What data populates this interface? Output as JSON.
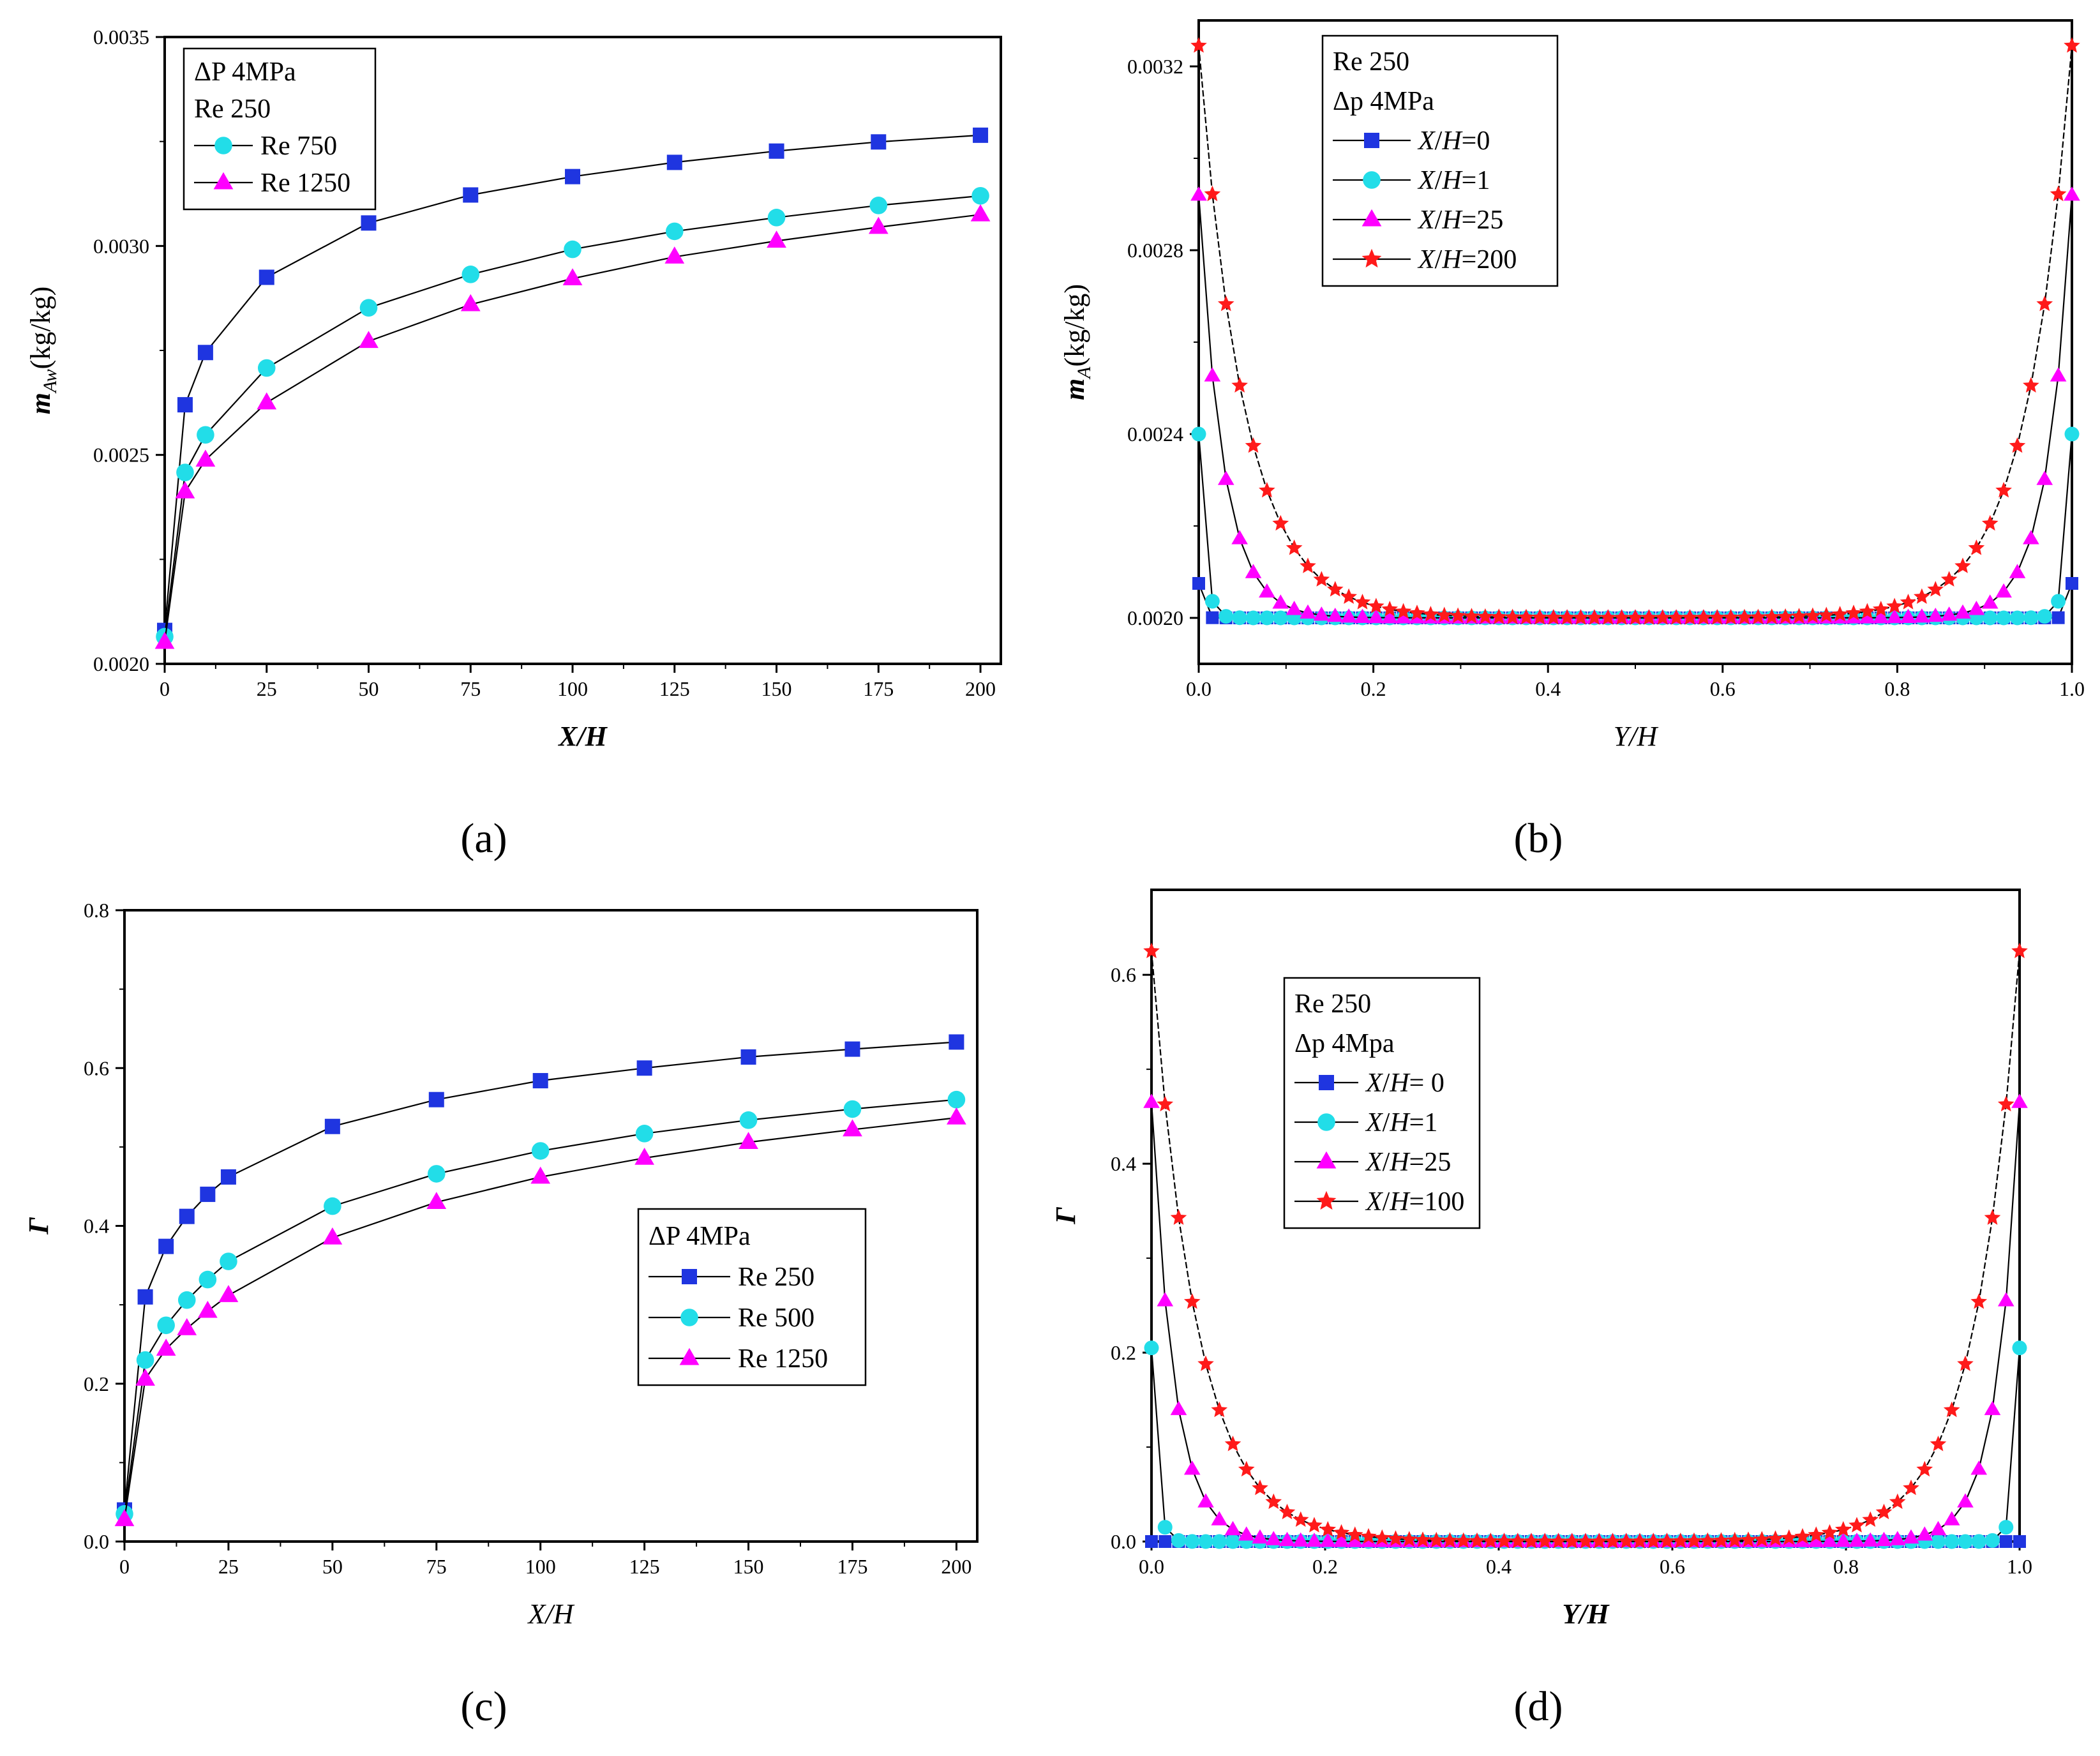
{
  "chart_data": [
    {
      "type": "line",
      "panel_label": "(a)",
      "xlabel": "X/H",
      "ylabel": "m_Aw(kg/kg)",
      "ylabel_main": "m",
      "ylabel_sub": "Aw",
      "ylabel_unit": "(kg/kg)",
      "xlim": [
        0,
        205
      ],
      "ylim": [
        0.002,
        0.0035
      ],
      "xticks": [
        0,
        25,
        50,
        75,
        100,
        125,
        150,
        175,
        200
      ],
      "yticks": [
        0.002,
        0.0025,
        0.003,
        0.0035
      ],
      "xtick_labels": [
        "0",
        "25",
        "50",
        "75",
        "100",
        "125",
        "150",
        "175",
        "200"
      ],
      "ytick_labels": [
        "0.0020",
        "0.0025",
        "0.0030",
        "0.0035"
      ],
      "legend_header": [
        "ΔP 4MPa",
        " Re 250"
      ],
      "series": [
        {
          "name": "Re 250",
          "marker": "square",
          "color": "#1f35e0",
          "in_legend": false,
          "x": [
            0,
            5,
            10,
            25,
            50,
            75,
            100,
            125,
            150,
            175,
            200
          ],
          "y": [
            0.00208,
            0.00262,
            0.002745,
            0.002925,
            0.003055,
            0.003122,
            0.003166,
            0.0032,
            0.003227,
            0.003249,
            0.003265
          ]
        },
        {
          "name": "Re 750",
          "marker": "circle",
          "color": "#22dde8",
          "in_legend": true,
          "x": [
            0,
            5,
            10,
            25,
            50,
            75,
            100,
            125,
            150,
            175,
            200
          ],
          "y": [
            0.002065,
            0.002458,
            0.002548,
            0.002708,
            0.002852,
            0.002932,
            0.002992,
            0.003035,
            0.003068,
            0.003097,
            0.00312
          ]
        },
        {
          "name": "Re 1250",
          "marker": "triangle",
          "color": "#ff00ff",
          "in_legend": true,
          "x": [
            0,
            5,
            10,
            25,
            50,
            75,
            100,
            125,
            150,
            175,
            200
          ],
          "y": [
            0.002052,
            0.002412,
            0.002488,
            0.002625,
            0.002772,
            0.00286,
            0.002922,
            0.002974,
            0.003012,
            0.003045,
            0.003075
          ]
        }
      ]
    },
    {
      "type": "line",
      "panel_label": "(b)",
      "xlabel": "Y/H",
      "ylabel": "m_A(kg/kg)",
      "ylabel_main": "m",
      "ylabel_sub": "A",
      "ylabel_unit": "(kg/kg)",
      "xlim": [
        0,
        1
      ],
      "ylim": [
        0.0019,
        0.0033
      ],
      "xticks": [
        0,
        0.2,
        0.4,
        0.6,
        0.8,
        1.0
      ],
      "yticks": [
        0.002,
        0.0024,
        0.0028,
        0.0032
      ],
      "xtick_labels": [
        "0.0",
        "0.2",
        "0.4",
        "0.6",
        "0.8",
        "1.0"
      ],
      "ytick_labels": [
        "0.0020",
        "0.0024",
        "0.0028",
        "0.0032"
      ],
      "legend_header": [
        "Re 250",
        "Δp 4MPa"
      ],
      "profile": true,
      "baseline": 0.002,
      "series": [
        {
          "name": "X/H=0",
          "marker": "square",
          "color": "#1f35e0",
          "peak": 0.002075,
          "decay": 0.003,
          "in_legend": true
        },
        {
          "name": "X/H=1",
          "marker": "circle",
          "color": "#22dde8",
          "peak": 0.0024,
          "decay": 0.0065,
          "in_legend": true
        },
        {
          "name": "X/H=25",
          "marker": "triangle",
          "color": "#ff00ff",
          "peak": 0.00292,
          "decay": 0.028,
          "in_legend": true
        },
        {
          "name": "X/H=200",
          "marker": "star",
          "color": "#ff1a1a",
          "peak": 0.003245,
          "decay": 0.052,
          "in_legend": true
        }
      ]
    },
    {
      "type": "line",
      "panel_label": "(c)",
      "xlabel": "X/H",
      "ylabel": "Γ",
      "ylabel_main": "Γ",
      "ylabel_sub": "",
      "ylabel_unit": "",
      "xlim": [
        0,
        205
      ],
      "ylim": [
        0,
        0.8
      ],
      "xticks": [
        0,
        25,
        50,
        75,
        100,
        125,
        150,
        175,
        200
      ],
      "yticks": [
        0,
        0.2,
        0.4,
        0.6,
        0.8
      ],
      "xtick_labels": [
        "0",
        "25",
        "50",
        "75",
        "100",
        "125",
        "150",
        "175",
        "200"
      ],
      "ytick_labels": [
        "0.0",
        "0.2",
        "0.4",
        "0.6",
        "0.8"
      ],
      "legend_header": [
        "ΔP 4MPa"
      ],
      "series": [
        {
          "name": "Re  250",
          "marker": "square",
          "color": "#1f35e0",
          "in_legend": true,
          "x": [
            0,
            5,
            10,
            15,
            20,
            25,
            50,
            75,
            100,
            125,
            150,
            175,
            200
          ],
          "y": [
            0.04,
            0.31,
            0.374,
            0.412,
            0.44,
            0.462,
            0.526,
            0.56,
            0.584,
            0.6,
            0.614,
            0.624,
            0.633
          ]
        },
        {
          "name": "Re  500",
          "marker": "circle",
          "color": "#22dde8",
          "in_legend": true,
          "x": [
            0,
            5,
            10,
            15,
            20,
            25,
            50,
            75,
            100,
            125,
            150,
            175,
            200
          ],
          "y": [
            0.035,
            0.23,
            0.274,
            0.306,
            0.332,
            0.355,
            0.425,
            0.466,
            0.495,
            0.517,
            0.534,
            0.548,
            0.56
          ]
        },
        {
          "name": "Re 1250",
          "marker": "triangle",
          "color": "#ff00ff",
          "in_legend": true,
          "x": [
            0,
            5,
            10,
            15,
            20,
            25,
            50,
            75,
            100,
            125,
            150,
            175,
            200
          ],
          "y": [
            0.028,
            0.206,
            0.244,
            0.27,
            0.292,
            0.312,
            0.385,
            0.43,
            0.462,
            0.486,
            0.506,
            0.522,
            0.537
          ]
        }
      ]
    },
    {
      "type": "line",
      "panel_label": "(d)",
      "xlabel": "Y/H",
      "ylabel": "Γ",
      "ylabel_main": "Γ",
      "ylabel_sub": "",
      "ylabel_unit": "",
      "xlim": [
        0,
        1
      ],
      "ylim": [
        0,
        0.69
      ],
      "xticks": [
        0,
        0.2,
        0.4,
        0.6,
        0.8,
        1.0
      ],
      "yticks": [
        0,
        0.2,
        0.4,
        0.6
      ],
      "xtick_labels": [
        "0.0",
        "0.2",
        "0.4",
        "0.6",
        "0.8",
        "1.0"
      ],
      "ytick_labels": [
        "0.0",
        "0.2",
        "0.4",
        "0.6"
      ],
      "legend_header": [
        "Re 250",
        "Δp 4Mpa"
      ],
      "profile": true,
      "baseline": 0,
      "series": [
        {
          "name": "X/H= 0",
          "marker": "square",
          "color": "#1f35e0",
          "peak": 0.0,
          "decay": 0.003,
          "in_legend": true
        },
        {
          "name": "X/H=1",
          "marker": "circle",
          "color": "#22dde8",
          "peak": 0.205,
          "decay": 0.006,
          "in_legend": true
        },
        {
          "name": "X/H=25",
          "marker": "triangle",
          "color": "#ff00ff",
          "peak": 0.465,
          "decay": 0.026,
          "in_legend": true
        },
        {
          "name": "X/H=100",
          "marker": "star",
          "color": "#ff1a1a",
          "peak": 0.625,
          "decay": 0.052,
          "in_legend": true
        }
      ]
    }
  ]
}
